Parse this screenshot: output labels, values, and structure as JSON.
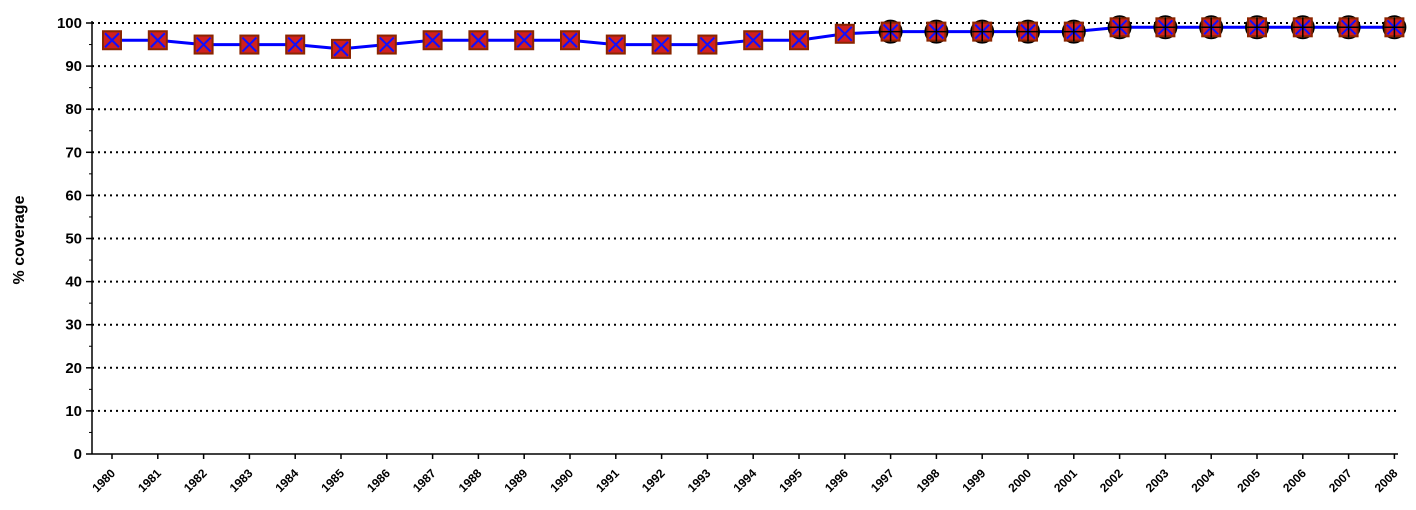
{
  "chart_data": {
    "type": "line",
    "title": "",
    "xlabel": "",
    "ylabel": "% coverage",
    "ylim": [
      0,
      100
    ],
    "yticks": [
      0,
      10,
      20,
      30,
      40,
      50,
      60,
      70,
      80,
      90,
      100
    ],
    "grid": "horizontal dotted",
    "categories": [
      "1980",
      "1981",
      "1982",
      "1983",
      "1984",
      "1985",
      "1986",
      "1987",
      "1988",
      "1989",
      "1990",
      "1991",
      "1992",
      "1993",
      "1994",
      "1995",
      "1996",
      "1997",
      "1998",
      "1999",
      "2000",
      "2001",
      "2002",
      "2003",
      "2004",
      "2005",
      "2006",
      "2007",
      "2008"
    ],
    "series": [
      {
        "values": [
          96,
          96,
          95,
          95,
          95,
          94,
          95,
          96,
          96,
          96,
          96,
          95,
          95,
          95,
          96,
          96,
          97.5,
          98,
          98,
          98,
          98,
          98,
          99,
          99,
          99,
          99,
          99,
          99,
          99
        ],
        "color": "#0000ff",
        "marker_fill": "#d02020",
        "marker_edge": "#8b2500"
      }
    ]
  }
}
